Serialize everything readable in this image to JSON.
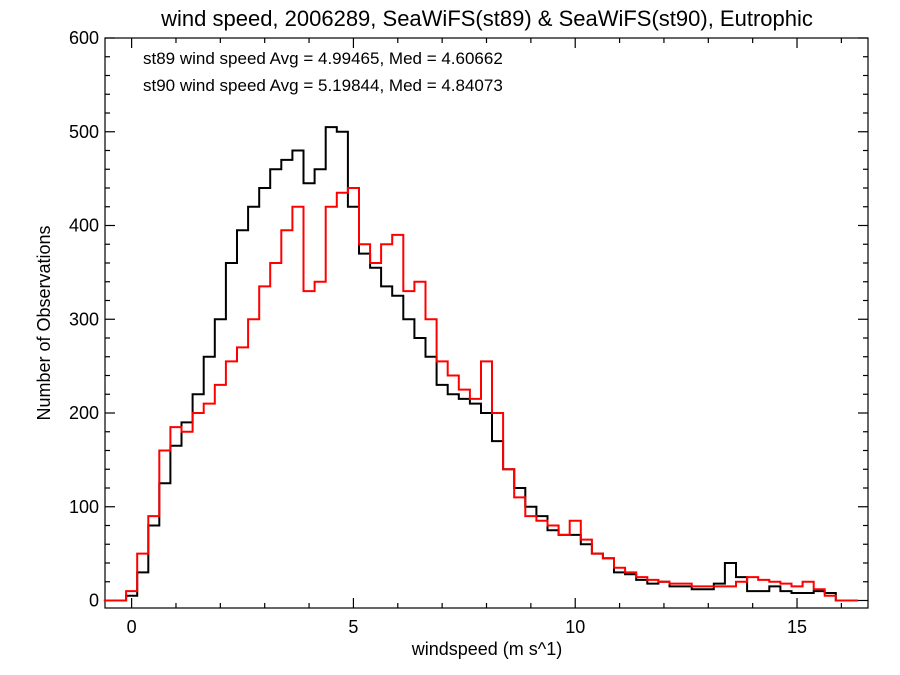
{
  "chart_data": {
    "type": "line",
    "title": "wind speed, 2006289, SeaWiFS(st89) & SeaWiFS(st90), Eutrophic",
    "xlabel": "windspeed (m s^1)",
    "ylabel": "Number of Observations",
    "xlim": [
      -0.6,
      16.6
    ],
    "ylim": [
      -8,
      600
    ],
    "xticks": [
      0,
      5,
      10,
      15
    ],
    "yticks": [
      0,
      100,
      200,
      300,
      400,
      500,
      600
    ],
    "xtick_labels": [
      "0",
      "5",
      "10",
      "15"
    ],
    "ytick_labels": [
      "0",
      "100",
      "200",
      "300",
      "400",
      "500",
      "600"
    ],
    "grid": false,
    "annotations": [
      {
        "text": "st89 wind speed Avg = 4.99465, Med = 4.60662",
        "color": "#000000"
      },
      {
        "text": "st90 wind speed Avg = 5.19844, Med = 4.84073",
        "color": "#ff0000"
      }
    ],
    "series": [
      {
        "color": "#000000",
        "x": [
          -0.5,
          -0.25,
          0,
          0.25,
          0.5,
          0.75,
          1,
          1.25,
          1.5,
          1.75,
          2,
          2.25,
          2.5,
          2.75,
          3,
          3.25,
          3.5,
          3.75,
          4,
          4.25,
          4.5,
          4.75,
          5,
          5.25,
          5.5,
          5.75,
          6,
          6.25,
          6.5,
          6.75,
          7,
          7.25,
          7.5,
          7.75,
          8,
          8.25,
          8.5,
          8.75,
          9,
          9.25,
          9.5,
          9.75,
          10,
          10.25,
          10.5,
          10.75,
          11,
          11.25,
          11.5,
          11.75,
          12,
          12.25,
          12.5,
          12.75,
          13,
          13.25,
          13.5,
          13.75,
          14,
          14.25,
          14.5,
          14.75,
          15,
          15.25,
          15.5,
          15.75,
          16,
          16.25
        ],
        "y": [
          0,
          0,
          5,
          30,
          80,
          125,
          165,
          190,
          220,
          260,
          300,
          360,
          395,
          420,
          440,
          460,
          470,
          480,
          445,
          460,
          505,
          500,
          420,
          370,
          355,
          335,
          325,
          300,
          280,
          260,
          230,
          220,
          215,
          210,
          200,
          170,
          140,
          120,
          100,
          90,
          75,
          70,
          70,
          60,
          50,
          45,
          30,
          28,
          22,
          18,
          20,
          15,
          15,
          12,
          12,
          18,
          40,
          25,
          10,
          10,
          15,
          10,
          8,
          8,
          10,
          8,
          0,
          0
        ]
      },
      {
        "color": "#ff0000",
        "x": [
          -0.5,
          -0.25,
          0,
          0.25,
          0.5,
          0.75,
          1,
          1.25,
          1.5,
          1.75,
          2,
          2.25,
          2.5,
          2.75,
          3,
          3.25,
          3.5,
          3.75,
          4,
          4.25,
          4.5,
          4.75,
          5,
          5.25,
          5.5,
          5.75,
          6,
          6.25,
          6.5,
          6.75,
          7,
          7.25,
          7.5,
          7.75,
          8,
          8.25,
          8.5,
          8.75,
          9,
          9.25,
          9.5,
          9.75,
          10,
          10.25,
          10.5,
          10.75,
          11,
          11.25,
          11.5,
          11.75,
          12,
          12.25,
          12.5,
          12.75,
          13,
          13.25,
          13.5,
          13.75,
          14,
          14.25,
          14.5,
          14.75,
          15,
          15.25,
          15.5,
          15.75,
          16,
          16.25
        ],
        "y": [
          0,
          0,
          10,
          50,
          90,
          160,
          185,
          180,
          200,
          210,
          230,
          255,
          270,
          300,
          335,
          360,
          395,
          420,
          330,
          340,
          420,
          435,
          440,
          380,
          360,
          380,
          390,
          330,
          340,
          300,
          255,
          240,
          225,
          215,
          255,
          200,
          140,
          110,
          90,
          85,
          80,
          70,
          85,
          65,
          50,
          45,
          35,
          30,
          25,
          22,
          20,
          18,
          18,
          15,
          15,
          15,
          15,
          20,
          25,
          22,
          20,
          18,
          15,
          20,
          12,
          5,
          0,
          0
        ]
      }
    ]
  }
}
